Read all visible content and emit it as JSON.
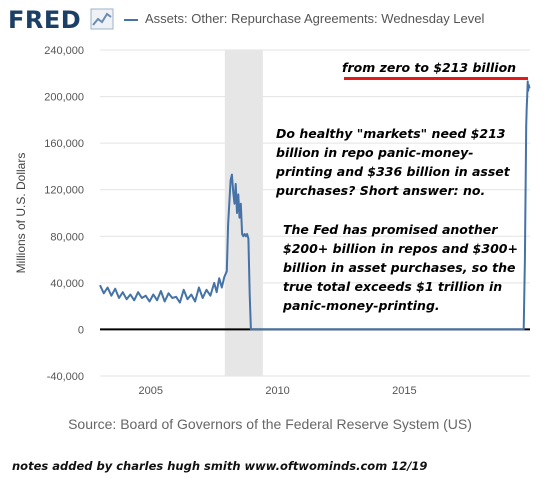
{
  "header": {
    "logo": "FRED",
    "logo_icon": "fred-chart-icon",
    "title": "Assets: Other: Repurchase Agreements: Wednesday Level"
  },
  "source": "Source: Board of Governors of the Federal Reserve System (US)",
  "footer": "notes added by charles hugh smith   www.oftwominds.com  12/19",
  "annotations": {
    "top_label": "from zero to $213 billion",
    "paragraph1": "Do healthy \"markets\" need $213 billion in repo panic-money-printing and $336 billion in asset purchases? Short answer: no.",
    "paragraph2": "The Fed has promised another $200+ billion in repos and $300+ billion in asset purchases, so the true total exceeds $1 trillion in panic-money-printing."
  },
  "colors": {
    "series": "#4572a7",
    "recession": "#e6e6e6",
    "annotation_line": "#e21a1a",
    "zero_line": "#000000"
  },
  "chart_data": {
    "type": "line",
    "title": "Assets: Other: Repurchase Agreements: Wednesday Level",
    "ylabel": "Millions of U.S. Dollars",
    "xlabel": "",
    "xlim": [
      2003.0,
      2019.95
    ],
    "ylim": [
      -40000,
      240000
    ],
    "yticks": [
      -40000,
      0,
      40000,
      80000,
      120000,
      160000,
      200000,
      240000
    ],
    "ytick_labels": [
      "-40,000",
      "0",
      "40,000",
      "80,000",
      "120,000",
      "160,000",
      "200,000",
      "240,000"
    ],
    "xticks": [
      2005,
      2010,
      2015
    ],
    "xtick_labels": [
      "2005",
      "2010",
      "2015"
    ],
    "grid": "horizontal",
    "recession_bands": [
      [
        2007.92,
        2009.42
      ]
    ],
    "series": [
      {
        "x": [
          2003.0,
          2003.15,
          2003.3,
          2003.45,
          2003.6,
          2003.75,
          2003.9,
          2004.05,
          2004.2,
          2004.35,
          2004.5,
          2004.65,
          2004.8,
          2004.95,
          2005.1,
          2005.25,
          2005.4,
          2005.55,
          2005.7,
          2005.85,
          2006.0,
          2006.15,
          2006.3,
          2006.45,
          2006.6,
          2006.75,
          2006.9,
          2007.05,
          2007.2,
          2007.35,
          2007.5,
          2007.6,
          2007.7,
          2007.8,
          2007.9,
          2008.0,
          2008.05,
          2008.1,
          2008.15,
          2008.2,
          2008.25,
          2008.3,
          2008.35,
          2008.4,
          2008.45,
          2008.5,
          2008.55,
          2008.6,
          2008.65,
          2008.7,
          2008.75,
          2008.8,
          2008.85,
          2008.9,
          2008.95,
          2009.0,
          2009.3,
          2009.6,
          2010.0,
          2012.0,
          2014.0,
          2016.0,
          2018.0,
          2019.5,
          2019.65,
          2019.7,
          2019.75,
          2019.78,
          2019.8,
          2019.82,
          2019.84,
          2019.86,
          2019.88,
          2019.9,
          2019.93
        ],
        "values": [
          38000,
          31000,
          36000,
          29000,
          35000,
          27000,
          32000,
          26000,
          30000,
          25000,
          32000,
          27000,
          29000,
          24000,
          30000,
          25000,
          33000,
          24000,
          31000,
          27000,
          28000,
          23000,
          34000,
          26000,
          30000,
          24000,
          36000,
          27000,
          34000,
          29000,
          40000,
          32000,
          44000,
          36000,
          45000,
          50000,
          90000,
          110000,
          128000,
          133000,
          118000,
          108000,
          125000,
          100000,
          116000,
          96000,
          108000,
          82000,
          80000,
          82000,
          80000,
          82000,
          78000,
          30000,
          0,
          0,
          0,
          0,
          0,
          0,
          0,
          0,
          0,
          0,
          0,
          0,
          60000,
          130000,
          175000,
          190000,
          200000,
          213000,
          205000,
          210000,
          207000
        ]
      }
    ]
  }
}
